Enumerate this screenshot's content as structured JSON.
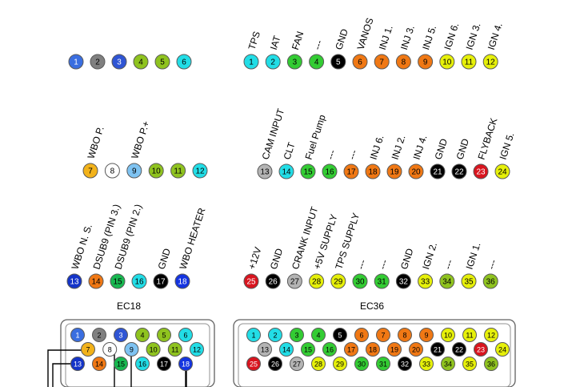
{
  "connectors": {
    "ec18": {
      "title": "EC18",
      "row1": [
        {
          "num": "1",
          "color": "#3a6ee0"
        },
        {
          "num": "2",
          "color": "#808080"
        },
        {
          "num": "3",
          "color": "#2f55d4"
        },
        {
          "num": "4",
          "color": "#8fc31f"
        },
        {
          "num": "5",
          "color": "#8fc31f"
        },
        {
          "num": "6",
          "color": "#22dde6"
        }
      ],
      "row2": [
        {
          "num": "7",
          "color": "#f2b21a",
          "label": "WBO P."
        },
        {
          "num": "8",
          "color": "#ffffff",
          "label": ""
        },
        {
          "num": "9",
          "color": "#7ec3f2",
          "label": "WBO P.+"
        },
        {
          "num": "10",
          "color": "#8fc31f",
          "label": ""
        },
        {
          "num": "11",
          "color": "#8fc31f",
          "label": ""
        },
        {
          "num": "12",
          "color": "#22dde6",
          "label": ""
        }
      ],
      "row3": [
        {
          "num": "13",
          "color": "#1434c8",
          "label": "WBO N. S."
        },
        {
          "num": "14",
          "color": "#f07814",
          "label": "DSUB9 (PIN 3.)"
        },
        {
          "num": "15",
          "color": "#18b850",
          "label": "DSUB9 (PIN 2.)"
        },
        {
          "num": "16",
          "color": "#22dde6",
          "label": ""
        },
        {
          "num": "17",
          "color": "#000000",
          "label": "GND"
        },
        {
          "num": "18",
          "color": "#1434e0",
          "label": "WBO  HEATER"
        }
      ]
    },
    "ec36": {
      "title": "EC36",
      "row1": [
        {
          "num": "1",
          "color": "#22dde6",
          "label": "TPS"
        },
        {
          "num": "2",
          "color": "#22dde6",
          "label": "IAT"
        },
        {
          "num": "3",
          "color": "#33cc33",
          "label": "FAN"
        },
        {
          "num": "4",
          "color": "#33cc33",
          "label": "---"
        },
        {
          "num": "5",
          "color": "#000000",
          "label": "GND"
        },
        {
          "num": "6",
          "color": "#f07814",
          "label": "VANOS"
        },
        {
          "num": "7",
          "color": "#f07814",
          "label": "INJ 1."
        },
        {
          "num": "8",
          "color": "#f07814",
          "label": "INJ 3."
        },
        {
          "num": "9",
          "color": "#f07814",
          "label": "INJ 5."
        },
        {
          "num": "10",
          "color": "#e6f00a",
          "label": "IGN 6."
        },
        {
          "num": "11",
          "color": "#e6f00a",
          "label": "IGN 3."
        },
        {
          "num": "12",
          "color": "#e6f00a",
          "label": "IGN 4."
        }
      ],
      "row2": [
        {
          "num": "13",
          "color": "#b4b4b4",
          "label": "CAM INPUT"
        },
        {
          "num": "14",
          "color": "#22dde6",
          "label": "CLT"
        },
        {
          "num": "15",
          "color": "#33cc33",
          "label": "Fuel Pump"
        },
        {
          "num": "16",
          "color": "#33cc33",
          "label": "---"
        },
        {
          "num": "17",
          "color": "#f07814",
          "label": "---"
        },
        {
          "num": "18",
          "color": "#f07814",
          "label": "INJ 6."
        },
        {
          "num": "19",
          "color": "#f07814",
          "label": "INJ 2."
        },
        {
          "num": "20",
          "color": "#f07814",
          "label": "INJ 4."
        },
        {
          "num": "21",
          "color": "#000000",
          "label": "GND"
        },
        {
          "num": "22",
          "color": "#000000",
          "label": "GND"
        },
        {
          "num": "23",
          "color": "#d8141e",
          "label": "FLYBACK"
        },
        {
          "num": "24",
          "color": "#e6f00a",
          "label": "IGN 5."
        }
      ],
      "row3": [
        {
          "num": "25",
          "color": "#d8141e",
          "label": "+12V"
        },
        {
          "num": "26",
          "color": "#000000",
          "label": "GND"
        },
        {
          "num": "27",
          "color": "#b4b4b4",
          "label": "CRANK INPUT"
        },
        {
          "num": "28",
          "color": "#e6f00a",
          "label": "+5V SUPPLY"
        },
        {
          "num": "29",
          "color": "#e6f00a",
          "label": "TPS SUPPLY"
        },
        {
          "num": "30",
          "color": "#33cc33",
          "label": "---"
        },
        {
          "num": "31",
          "color": "#33cc33",
          "label": "---"
        },
        {
          "num": "32",
          "color": "#000000",
          "label": "GND"
        },
        {
          "num": "33",
          "color": "#e6f00a",
          "label": "IGN 2."
        },
        {
          "num": "34",
          "color": "#8fc31f",
          "label": "---"
        },
        {
          "num": "35",
          "color": "#e6f00a",
          "label": "IGN 1."
        },
        {
          "num": "36",
          "color": "#8fc31f",
          "label": "---"
        }
      ]
    }
  }
}
